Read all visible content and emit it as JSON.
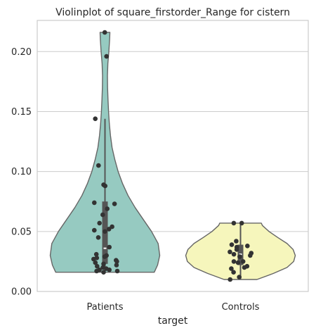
{
  "chart_data": {
    "type": "violin",
    "title": "Violinplot of square_firstorder_Range for cistern",
    "xlabel": "target",
    "ylabel": "",
    "ylim": [
      0.0,
      0.226
    ],
    "yticks": [
      0.0,
      0.05,
      0.1,
      0.15,
      0.2
    ],
    "ytick_labels": [
      "0.00",
      "0.05",
      "0.10",
      "0.15",
      "0.20"
    ],
    "grid": "horizontal",
    "categories": [
      "Patients",
      "Controls"
    ],
    "colors": {
      "Patients": "#96cac1",
      "Controls": "#f6f6bc"
    },
    "series": [
      {
        "category": "Patients",
        "box": {
          "q1": 0.023,
          "median": 0.036,
          "q3": 0.075,
          "whisker_low": 0.016,
          "whisker_high": 0.144
        },
        "range": [
          0.016,
          0.216
        ],
        "violin_profile": [
          [
            0.016,
            0.9
          ],
          [
            0.022,
            0.96
          ],
          [
            0.03,
            1.0
          ],
          [
            0.04,
            0.97
          ],
          [
            0.05,
            0.85
          ],
          [
            0.06,
            0.7
          ],
          [
            0.07,
            0.55
          ],
          [
            0.08,
            0.42
          ],
          [
            0.09,
            0.32
          ],
          [
            0.1,
            0.24
          ],
          [
            0.11,
            0.18
          ],
          [
            0.12,
            0.13
          ],
          [
            0.13,
            0.1
          ],
          [
            0.14,
            0.08
          ],
          [
            0.15,
            0.065
          ],
          [
            0.16,
            0.055
          ],
          [
            0.17,
            0.048
          ],
          [
            0.18,
            0.045
          ],
          [
            0.19,
            0.052
          ],
          [
            0.2,
            0.07
          ],
          [
            0.21,
            0.085
          ],
          [
            0.216,
            0.09
          ]
        ],
        "points": [
          0.216,
          0.196,
          0.144,
          0.105,
          0.089,
          0.088,
          0.074,
          0.073,
          0.069,
          0.064,
          0.057,
          0.054,
          0.052,
          0.051,
          0.05,
          0.045,
          0.037,
          0.031,
          0.03,
          0.029,
          0.028,
          0.027,
          0.026,
          0.025,
          0.024,
          0.023,
          0.022,
          0.021,
          0.02,
          0.019,
          0.018,
          0.018,
          0.017,
          0.017,
          0.016
        ]
      },
      {
        "category": "Controls",
        "box": {
          "q1": 0.022,
          "median": 0.031,
          "q3": 0.039,
          "whisker_low": 0.01,
          "whisker_high": 0.057
        },
        "range": [
          0.01,
          0.057
        ],
        "violin_profile": [
          [
            0.01,
            0.3
          ],
          [
            0.015,
            0.6
          ],
          [
            0.02,
            0.85
          ],
          [
            0.025,
            0.97
          ],
          [
            0.03,
            1.0
          ],
          [
            0.035,
            0.96
          ],
          [
            0.04,
            0.85
          ],
          [
            0.045,
            0.68
          ],
          [
            0.05,
            0.52
          ],
          [
            0.055,
            0.4
          ],
          [
            0.057,
            0.38
          ]
        ],
        "points": [
          0.057,
          0.057,
          0.042,
          0.039,
          0.038,
          0.037,
          0.035,
          0.033,
          0.032,
          0.031,
          0.03,
          0.029,
          0.025,
          0.025,
          0.024,
          0.021,
          0.02,
          0.019,
          0.016,
          0.012,
          0.01
        ]
      }
    ]
  }
}
